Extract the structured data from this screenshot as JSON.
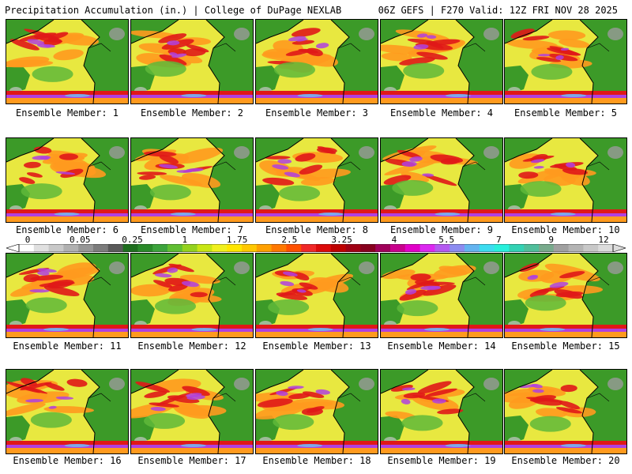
{
  "header": {
    "title_left": "Precipitation Accumulation (in.) | College of DuPage NEXLAB",
    "title_right": "06Z GEFS | F270 Valid: 12Z FRI NOV 28 2025"
  },
  "colorbar": {
    "labels": [
      "0",
      "0.05",
      "0.25",
      "1",
      "1.75",
      "2.5",
      "3.25",
      "4",
      "5.5",
      "7",
      "9",
      "12"
    ],
    "colors": [
      "#ffffff",
      "#e0e0e0",
      "#c8c8c8",
      "#b0b0b0",
      "#969696",
      "#7c7c7c",
      "#5a5a5a",
      "#1e6e1e",
      "#2a8a2a",
      "#3ca33c",
      "#60be32",
      "#94d21e",
      "#c8e614",
      "#f0f01e",
      "#ffe600",
      "#ffc800",
      "#ffa000",
      "#ff7800",
      "#ff5000",
      "#f02828",
      "#dc0a0a",
      "#be0000",
      "#a00014",
      "#87001e",
      "#a0005a",
      "#c8008c",
      "#e100c8",
      "#dc28f0",
      "#b45af0",
      "#8c8cf0",
      "#64b4f0",
      "#3cdcf0",
      "#28f0dc",
      "#32d2b4",
      "#50be9b",
      "#78aa8c",
      "#a0a0a0",
      "#b4b4b4",
      "#c8c8c8",
      "#dcdcdc"
    ]
  },
  "members": [
    {
      "label": "Ensemble Member: 1"
    },
    {
      "label": "Ensemble Member: 2"
    },
    {
      "label": "Ensemble Member: 3"
    },
    {
      "label": "Ensemble Member: 4"
    },
    {
      "label": "Ensemble Member: 5"
    },
    {
      "label": "Ensemble Member: 6"
    },
    {
      "label": "Ensemble Member: 7"
    },
    {
      "label": "Ensemble Member: 8"
    },
    {
      "label": "Ensemble Member: 9"
    },
    {
      "label": "Ensemble Member: 10"
    },
    {
      "label": "Ensemble Member: 11"
    },
    {
      "label": "Ensemble Member: 12"
    },
    {
      "label": "Ensemble Member: 13"
    },
    {
      "label": "Ensemble Member: 14"
    },
    {
      "label": "Ensemble Member: 15"
    },
    {
      "label": "Ensemble Member: 16"
    },
    {
      "label": "Ensemble Member: 17"
    },
    {
      "label": "Ensemble Member: 18"
    },
    {
      "label": "Ensemble Member: 19"
    },
    {
      "label": "Ensemble Member: 20"
    }
  ],
  "map_colors": {
    "land": "#3c9a28",
    "ocean_light": "#e8e840",
    "ocean_mid": "#ff9a1e",
    "ocean_heavy": "#e01818",
    "extreme": "#b040e0",
    "peak": "#78b4f0",
    "coast": "#000000"
  }
}
